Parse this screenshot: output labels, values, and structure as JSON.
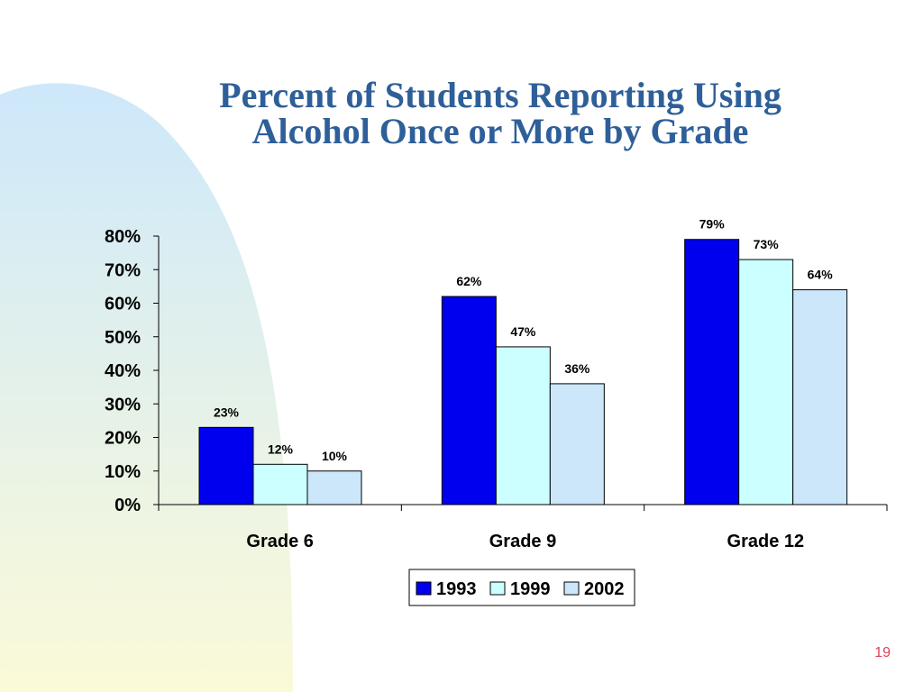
{
  "slide": {
    "title_line1": "Percent of Students Reporting Using",
    "title_line2": "Alcohol Once or More by Grade",
    "page_number": "19"
  },
  "colors": {
    "title": "#2e5f99",
    "page_number": "#e0405a",
    "background_shape_top": "#cde8fb",
    "background_shape_bottom": "#fbfad8"
  },
  "chart_data": {
    "type": "bar",
    "categories": [
      "Grade 6",
      "Grade 9",
      "Grade 12"
    ],
    "series": [
      {
        "name": "1993",
        "values": [
          23,
          62,
          79
        ],
        "labels": [
          "23%",
          "62%",
          "79%"
        ],
        "color": "#0000ee"
      },
      {
        "name": "1999",
        "values": [
          12,
          47,
          73
        ],
        "labels": [
          "12%",
          "47%",
          "73%"
        ],
        "color": "#ccffff"
      },
      {
        "name": "2002",
        "values": [
          10,
          36,
          64
        ],
        "labels": [
          "10%",
          "36%",
          "64%"
        ],
        "color": "#cce6fa"
      }
    ],
    "y_ticks": [
      "0%",
      "10%",
      "20%",
      "30%",
      "40%",
      "50%",
      "60%",
      "70%",
      "80%"
    ],
    "ylim": [
      0,
      80
    ],
    "grid": false,
    "legend_position": "bottom"
  }
}
